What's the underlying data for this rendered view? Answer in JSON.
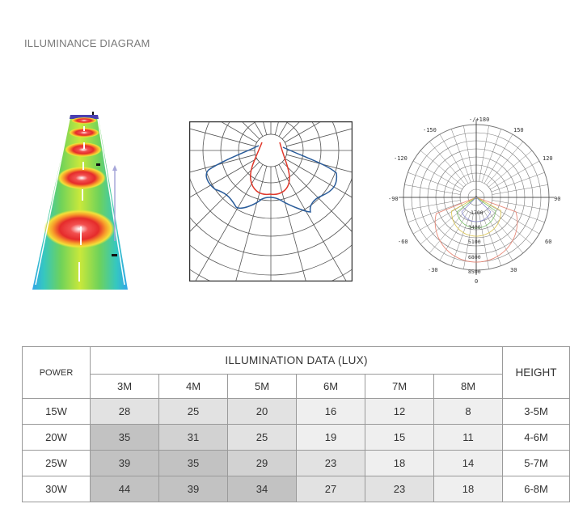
{
  "page": {
    "heading": "ILLUMINANCE DIAGRAM"
  },
  "polar_dial": {
    "angle_labels": [
      "-/+180",
      "-150",
      "150",
      "-120",
      "120",
      "-90",
      "90",
      "-60",
      "60",
      "-30",
      "30",
      "0"
    ],
    "ring_labels": [
      "1700",
      "3400",
      "5100",
      "6800",
      "8500"
    ]
  },
  "table": {
    "power_header": "POWER",
    "data_header": "ILLUMINATION DATA (LUX)",
    "height_header": "HEIGHT",
    "distance_headers": [
      "3M",
      "4M",
      "5M",
      "6M",
      "7M",
      "8M"
    ],
    "rows": [
      {
        "power": "15W",
        "values": [
          "28",
          "25",
          "20",
          "16",
          "12",
          "8"
        ],
        "height": "3-5M"
      },
      {
        "power": "20W",
        "values": [
          "35",
          "31",
          "25",
          "19",
          "15",
          "11"
        ],
        "height": "4-6M"
      },
      {
        "power": "25W",
        "values": [
          "39",
          "35",
          "29",
          "23",
          "18",
          "14"
        ],
        "height": "5-7M"
      },
      {
        "power": "30W",
        "values": [
          "44",
          "39",
          "34",
          "27",
          "23",
          "18"
        ],
        "height": "6-8M"
      }
    ]
  },
  "colors": {
    "blue_curve": "#2a5c9a",
    "red_curve": "#e0382b",
    "grid": "#555555"
  }
}
